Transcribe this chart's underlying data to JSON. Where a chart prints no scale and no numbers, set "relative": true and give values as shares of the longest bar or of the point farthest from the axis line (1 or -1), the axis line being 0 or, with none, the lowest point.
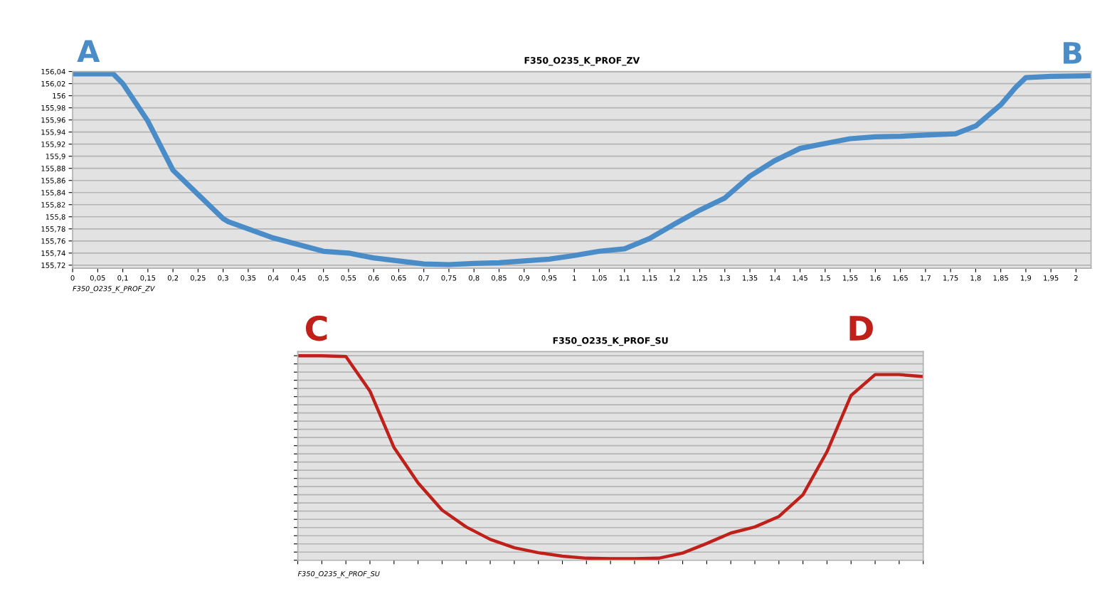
{
  "chart_data": [
    {
      "type": "line",
      "title": "F350_O235_K_PROF_ZV",
      "xlabel": "F350_O235_K_PROF_ZV",
      "x": [
        0,
        0.081,
        0.1,
        0.15,
        0.2,
        0.25,
        0.3,
        0.31,
        0.4,
        0.5,
        0.55,
        0.6,
        0.65,
        0.7,
        0.75,
        0.8,
        0.85,
        0.9,
        0.95,
        1.0,
        1.05,
        1.1,
        1.15,
        1.2,
        1.25,
        1.3,
        1.35,
        1.4,
        1.45,
        1.5,
        1.55,
        1.6,
        1.65,
        1.7,
        1.76,
        1.8,
        1.85,
        1.88,
        1.9,
        1.95,
        2.024
      ],
      "series": [
        {
          "color": "#4a8cc7",
          "values": [
            156.036,
            156.036,
            156.02,
            155.958,
            155.877,
            155.837,
            155.797,
            155.792,
            155.765,
            155.743,
            155.74,
            155.732,
            155.727,
            155.722,
            155.721,
            155.723,
            155.724,
            155.727,
            155.73,
            155.736,
            155.743,
            155.747,
            155.764,
            155.788,
            155.811,
            155.831,
            155.867,
            155.893,
            155.913,
            155.921,
            155.929,
            155.932,
            155.933,
            155.935,
            155.937,
            155.95,
            155.985,
            156.014,
            156.03,
            156.032,
            156.033
          ]
        }
      ],
      "xlim": [
        0,
        2.03
      ],
      "xticks": [
        0,
        {
          "value": 0.05,
          "label": "0,05"
        },
        {
          "value": 0.1,
          "label": "0,1"
        },
        {
          "value": 0.15,
          "label": "0,15"
        },
        {
          "value": 0.2,
          "label": "0,2"
        },
        {
          "value": 0.25,
          "label": "0,25"
        },
        {
          "value": 0.3,
          "label": "0,3"
        },
        {
          "value": 0.35,
          "label": "0,35"
        },
        {
          "value": 0.4,
          "label": "0,4"
        },
        {
          "value": 0.45,
          "label": "0,45"
        },
        {
          "value": 0.5,
          "label": "0,5"
        },
        {
          "value": 0.55,
          "label": "0,55"
        },
        {
          "value": 0.6,
          "label": "0,6"
        },
        {
          "value": 0.65,
          "label": "0,65"
        },
        {
          "value": 0.7,
          "label": "0,7"
        },
        {
          "value": 0.75,
          "label": "0,75"
        },
        {
          "value": 0.8,
          "label": "0,8"
        },
        {
          "value": 0.85,
          "label": "0,85"
        },
        {
          "value": 0.9,
          "label": "0,9"
        },
        {
          "value": 0.95,
          "label": "0,95"
        },
        1,
        {
          "value": 1.05,
          "label": "1,05"
        },
        {
          "value": 1.1,
          "label": "1,1"
        },
        {
          "value": 1.15,
          "label": "1,15"
        },
        {
          "value": 1.2,
          "label": "1,2"
        },
        {
          "value": 1.25,
          "label": "1,25"
        },
        {
          "value": 1.3,
          "label": "1,3"
        },
        {
          "value": 1.35,
          "label": "1,35"
        },
        {
          "value": 1.4,
          "label": "1,4"
        },
        {
          "value": 1.45,
          "label": "1,45"
        },
        {
          "value": 1.5,
          "label": "1,5"
        },
        {
          "value": 1.55,
          "label": "1,55"
        },
        {
          "value": 1.6,
          "label": "1,6"
        },
        {
          "value": 1.65,
          "label": "1,65"
        },
        {
          "value": 1.7,
          "label": "1,7"
        },
        {
          "value": 1.75,
          "label": "1,75"
        },
        {
          "value": 1.8,
          "label": "1,8"
        },
        {
          "value": 1.85,
          "label": "1,85"
        },
        {
          "value": 1.9,
          "label": "1,9"
        },
        {
          "value": 1.95,
          "label": "1,95"
        },
        2
      ],
      "ylim": [
        155.715,
        156.04
      ],
      "yticks": [
        {
          "value": 155.72,
          "label": "155,72"
        },
        {
          "value": 155.74,
          "label": "155,74"
        },
        {
          "value": 155.76,
          "label": "155,76"
        },
        {
          "value": 155.78,
          "label": "155,78"
        },
        {
          "value": 155.8,
          "label": "155,8"
        },
        {
          "value": 155.82,
          "label": "155,82"
        },
        {
          "value": 155.84,
          "label": "155,84"
        },
        {
          "value": 155.86,
          "label": "155,86"
        },
        {
          "value": 155.88,
          "label": "155,88"
        },
        {
          "value": 155.9,
          "label": "155,9"
        },
        {
          "value": 155.92,
          "label": "155,92"
        },
        {
          "value": 155.94,
          "label": "155,94"
        },
        {
          "value": 155.96,
          "label": "155,96"
        },
        {
          "value": 155.98,
          "label": "155,98"
        },
        156,
        {
          "value": 156.02,
          "label": "156,02"
        },
        {
          "value": 156.04,
          "label": "156,04"
        }
      ],
      "grid": "y",
      "marker": "none",
      "line_style": "solid",
      "annotations": [
        {
          "text": "A",
          "x": 0,
          "y": 156.036
        },
        {
          "text": "B",
          "x": 2.024,
          "y": 156.033
        }
      ]
    },
    {
      "type": "line",
      "title": "F350_O235_K_PROF_SU",
      "xlabel": "F350_O235_K_PROF_SU",
      "relative": true,
      "categories": [
        null,
        null,
        null,
        null,
        null,
        null,
        null,
        null,
        null,
        null,
        null,
        null,
        null,
        null,
        null,
        null,
        null,
        null,
        null,
        null,
        null,
        null,
        null,
        null,
        null,
        null,
        null
      ],
      "series": [
        {
          "color": "#c0201a",
          "values": [
            1,
            1,
            0.996,
            0.827,
            0.551,
            0.378,
            0.245,
            0.163,
            0.102,
            0.061,
            0.037,
            0.02,
            0.01,
            0.008,
            0.008,
            0.01,
            0.035,
            0.082,
            0.133,
            0.163,
            0.214,
            0.32,
            0.531,
            0.806,
            0.908,
            0.908,
            0.898
          ]
        }
      ],
      "grid": "y",
      "marker": "none",
      "line_style": "solid",
      "annotations": [
        "C",
        "D"
      ]
    }
  ]
}
